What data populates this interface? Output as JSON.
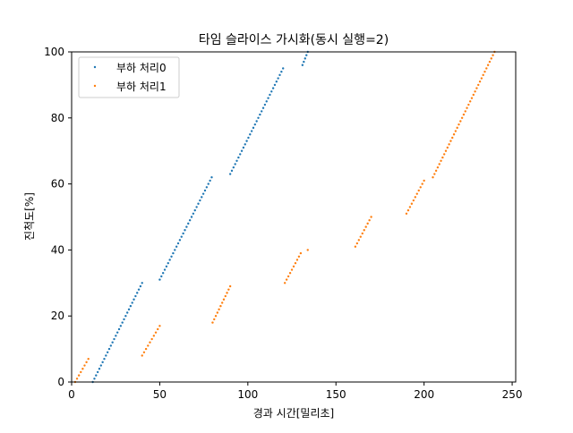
{
  "chart_data": {
    "type": "scatter",
    "title": "타임 슬라이스 가시화(동시 실행=2)",
    "xlabel": "경과 시간[밀리초]",
    "ylabel": "진척도[%]",
    "xlim": [
      0,
      252
    ],
    "ylim": [
      0,
      100
    ],
    "xticks": [
      "0",
      "50",
      "100",
      "150",
      "200",
      "250"
    ],
    "yticks": [
      "0",
      "20",
      "40",
      "60",
      "80",
      "100"
    ],
    "grid": false,
    "legend_position": "top-left",
    "series": [
      {
        "name": "부하 처리0",
        "color": "#1f77b4",
        "segments": [
          {
            "x": [
              12,
              40
            ],
            "y": [
              0,
              30
            ]
          },
          {
            "x": [
              50,
              79.5
            ],
            "y": [
              31,
              62
            ]
          },
          {
            "x": [
              90,
              120
            ],
            "y": [
              63,
              95
            ]
          },
          {
            "x": [
              131,
              134
            ],
            "y": [
              96,
              100
            ]
          }
        ]
      },
      {
        "name": "부하 처리1",
        "color": "#ff7f0e",
        "segments": [
          {
            "x": [
              2,
              9.5
            ],
            "y": [
              0,
              7
            ]
          },
          {
            "x": [
              40,
              50
            ],
            "y": [
              8,
              17
            ]
          },
          {
            "x": [
              80,
              90
            ],
            "y": [
              18,
              29
            ]
          },
          {
            "x": [
              121,
              130
            ],
            "y": [
              30,
              39
            ]
          },
          {
            "x": [
              134,
              134
            ],
            "y": [
              40,
              40
            ]
          },
          {
            "x": [
              161,
              170
            ],
            "y": [
              41,
              50
            ]
          },
          {
            "x": [
              190,
              200
            ],
            "y": [
              51,
              61
            ]
          },
          {
            "x": [
              205,
              240
            ],
            "y": [
              62,
              100
            ]
          }
        ]
      }
    ]
  }
}
